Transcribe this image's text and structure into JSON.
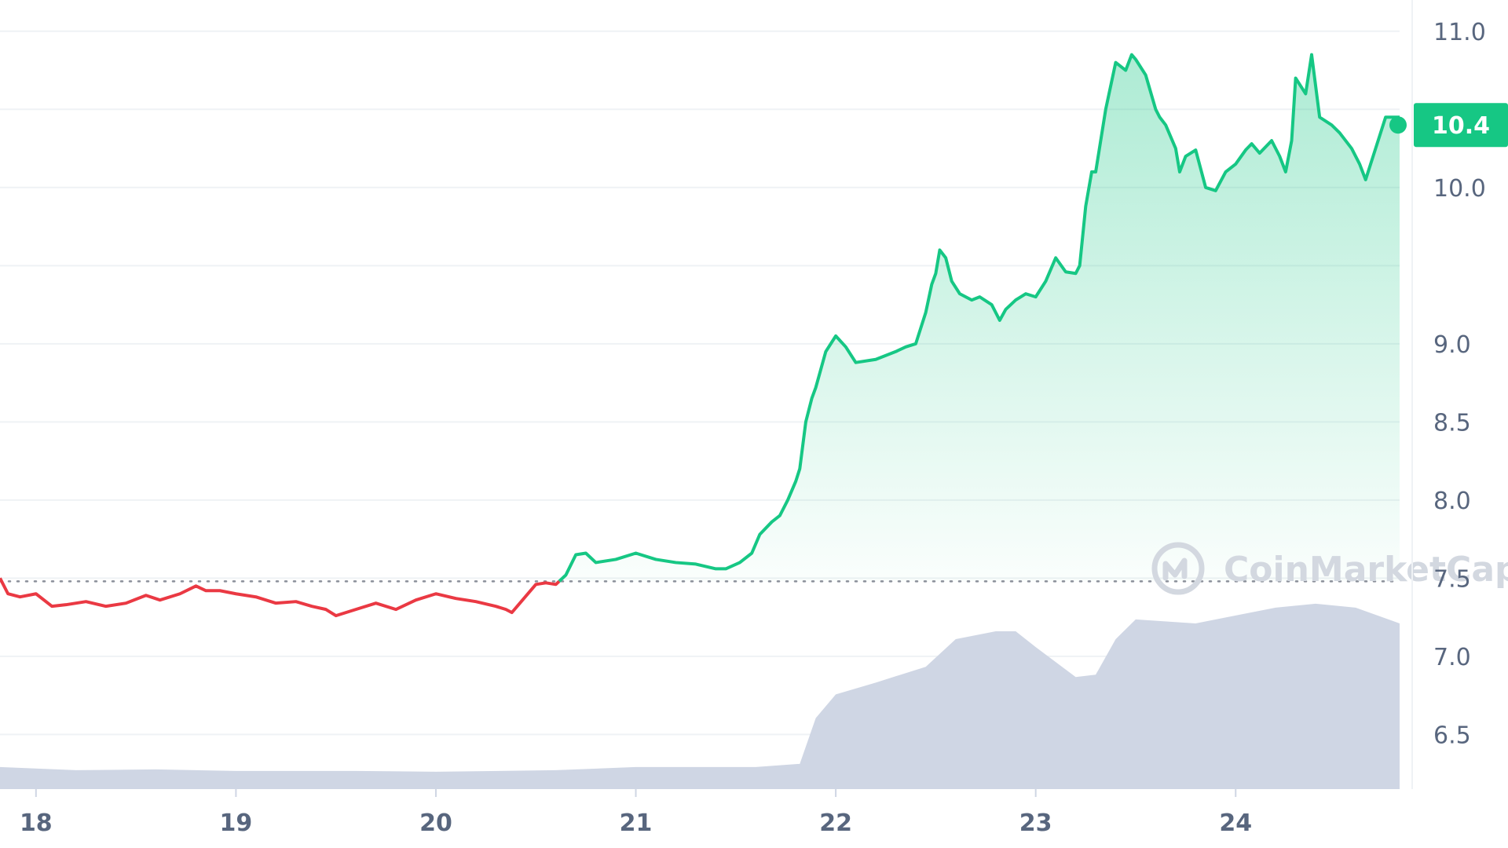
{
  "chart_data": {
    "type": "line",
    "title": "",
    "xlabel": "",
    "ylabel": "",
    "x_ticks": [
      "18",
      "19",
      "20",
      "21",
      "22",
      "23",
      "24"
    ],
    "y_ticks": [
      "6.5",
      "7.0",
      "7.5",
      "8.0",
      "8.5",
      "9.0",
      "9.5",
      "10.0",
      "10.5",
      "11.0"
    ],
    "y_tick_labels": [
      "6.5",
      "7.0",
      "7.5",
      "8.0",
      "8.5",
      "9.0",
      "",
      "10.0",
      "",
      "11.0"
    ],
    "ylim": [
      6.15,
      11.2
    ],
    "xlim": [
      17.82,
      24.82
    ],
    "grid": true,
    "baseline": 7.48,
    "current_price_label": "10.4",
    "current_price": 10.4,
    "colors": {
      "up": "#16c784",
      "down": "#ea3943",
      "fill_top": "#16c784",
      "volume": "#cfd6e4",
      "badge": "#16c784",
      "grid": "#eff2f5",
      "tick_text": "#58667e",
      "baseline": "#8a8f99"
    },
    "series": [
      {
        "x": [
          17.82,
          17.86,
          17.92,
          18.0,
          18.08,
          18.15,
          18.25,
          18.35,
          18.45,
          18.55,
          18.62,
          18.72,
          18.8,
          18.85,
          18.92,
          19.0,
          19.1,
          19.2,
          19.3,
          19.38,
          19.45,
          19.5,
          19.6,
          19.7,
          19.8,
          19.9,
          20.0,
          20.1,
          20.2,
          20.3,
          20.35,
          20.38,
          20.42,
          20.5,
          20.55,
          20.6,
          20.65,
          20.7,
          20.75,
          20.8,
          20.9,
          21.0,
          21.1,
          21.2,
          21.3,
          21.4,
          21.45,
          21.52,
          21.58,
          21.62,
          21.68,
          21.72,
          21.76,
          21.8,
          21.82,
          21.85,
          21.88,
          21.9,
          21.95,
          22.0,
          22.05,
          22.1,
          22.2,
          22.3,
          22.35,
          22.4,
          22.45,
          22.48,
          22.5,
          22.52,
          22.55,
          22.58,
          22.62,
          22.68,
          22.72,
          22.78,
          22.82,
          22.85,
          22.9,
          22.95,
          23.0,
          23.05,
          23.1,
          23.15,
          23.2,
          23.22,
          23.25,
          23.28,
          23.3,
          23.35,
          23.4,
          23.45,
          23.48,
          23.5,
          23.55,
          23.6,
          23.62,
          23.65,
          23.7,
          23.72,
          23.75,
          23.8,
          23.85,
          23.9,
          23.95,
          24.0,
          24.05,
          24.08,
          24.12,
          24.18,
          24.22,
          24.25,
          24.28,
          24.3,
          24.35,
          24.38,
          24.42,
          24.48,
          24.52,
          24.58,
          24.62,
          24.65,
          24.7,
          24.75,
          24.82
        ],
        "y": [
          7.5,
          7.4,
          7.38,
          7.4,
          7.32,
          7.33,
          7.35,
          7.32,
          7.34,
          7.39,
          7.36,
          7.4,
          7.45,
          7.42,
          7.42,
          7.4,
          7.38,
          7.34,
          7.35,
          7.32,
          7.3,
          7.26,
          7.3,
          7.34,
          7.3,
          7.36,
          7.4,
          7.37,
          7.35,
          7.32,
          7.3,
          7.28,
          7.34,
          7.46,
          7.47,
          7.46,
          7.52,
          7.65,
          7.66,
          7.6,
          7.62,
          7.66,
          7.62,
          7.6,
          7.59,
          7.56,
          7.56,
          7.6,
          7.66,
          7.78,
          7.86,
          7.9,
          8.0,
          8.12,
          8.2,
          8.5,
          8.65,
          8.72,
          8.95,
          9.05,
          8.98,
          8.88,
          8.9,
          8.95,
          8.98,
          9.0,
          9.2,
          9.38,
          9.45,
          9.6,
          9.55,
          9.4,
          9.32,
          9.28,
          9.3,
          9.25,
          9.15,
          9.22,
          9.28,
          9.32,
          9.3,
          9.4,
          9.55,
          9.46,
          9.45,
          9.5,
          9.88,
          10.1,
          10.1,
          10.5,
          10.8,
          10.75,
          10.85,
          10.82,
          10.72,
          10.5,
          10.45,
          10.4,
          10.25,
          10.1,
          10.2,
          10.24,
          10.0,
          9.98,
          10.1,
          10.15,
          10.24,
          10.28,
          10.22,
          10.3,
          10.2,
          10.1,
          10.3,
          10.7,
          10.6,
          10.85,
          10.45,
          10.4,
          10.35,
          10.25,
          10.15,
          10.05,
          10.25,
          10.45,
          10.45
        ]
      }
    ],
    "volume": {
      "x": [
        17.82,
        18.2,
        18.6,
        19.0,
        19.6,
        20.0,
        20.6,
        21.0,
        21.6,
        21.82,
        21.9,
        22.0,
        22.2,
        22.45,
        22.6,
        22.8,
        22.9,
        23.0,
        23.2,
        23.3,
        23.4,
        23.5,
        23.8,
        24.0,
        24.2,
        24.4,
        24.6,
        24.82
      ],
      "v": [
        0.028,
        0.024,
        0.025,
        0.023,
        0.023,
        0.022,
        0.024,
        0.028,
        0.028,
        0.032,
        0.09,
        0.12,
        0.135,
        0.155,
        0.19,
        0.2,
        0.2,
        0.18,
        0.142,
        0.145,
        0.19,
        0.215,
        0.21,
        0.22,
        0.23,
        0.235,
        0.23,
        0.21
      ]
    }
  },
  "watermark": "CoinMarketCap"
}
